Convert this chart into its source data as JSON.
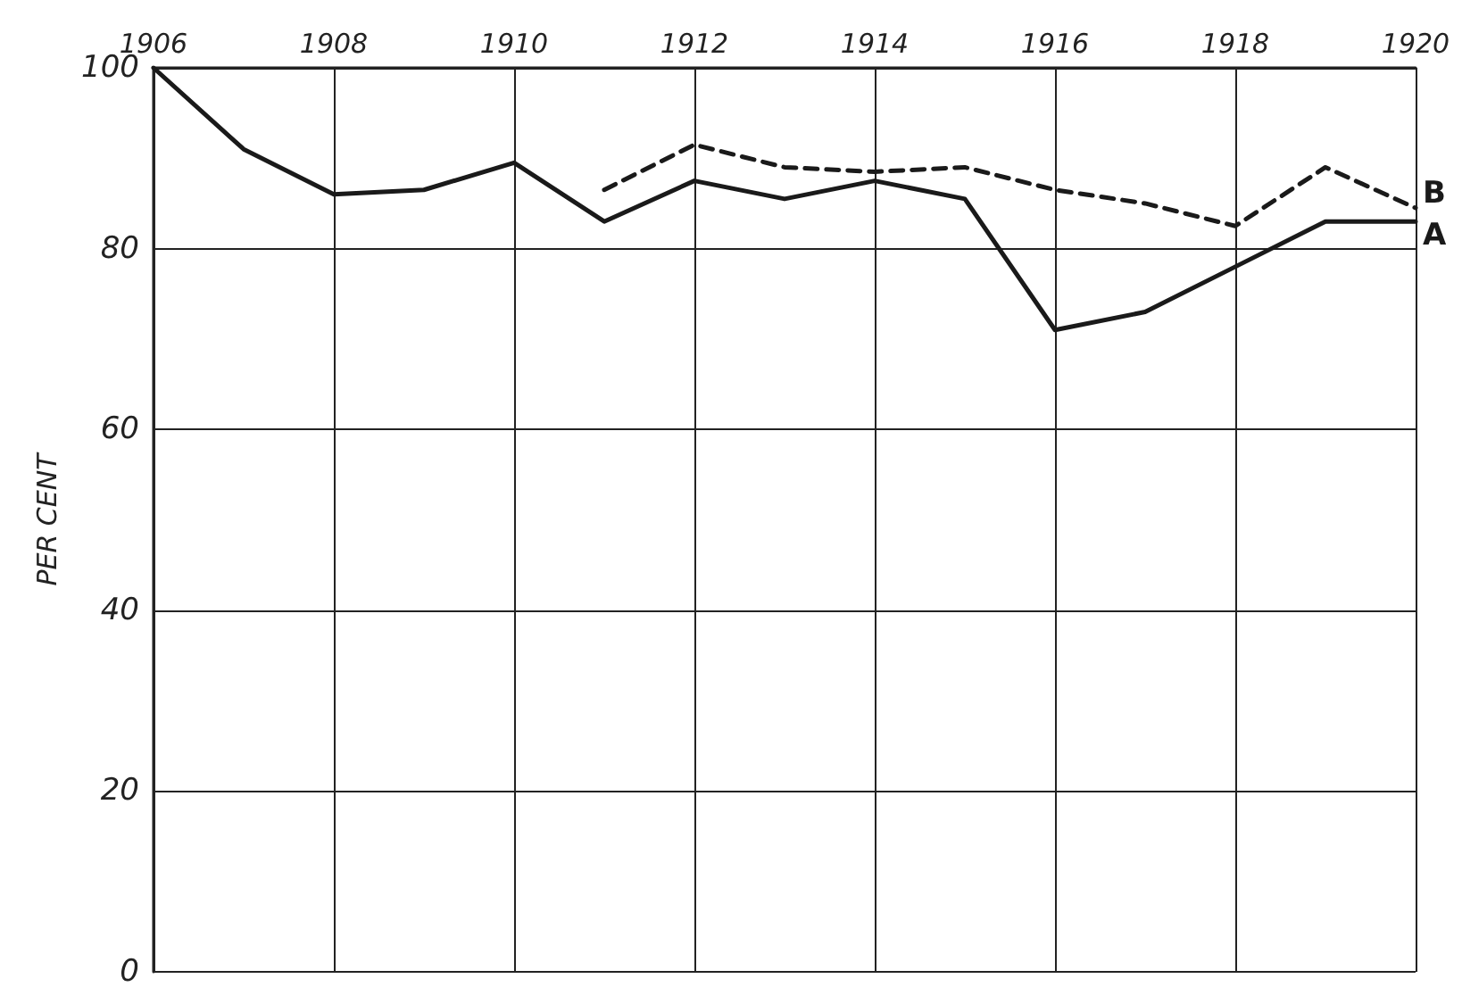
{
  "chart_data": {
    "type": "line",
    "ylabel": "PER CENT",
    "xlim": [
      1906,
      1920
    ],
    "xticks": [
      1906,
      1908,
      1910,
      1912,
      1914,
      1916,
      1918,
      1920
    ],
    "ylim": [
      0,
      100
    ],
    "yticks": [
      0,
      20,
      40,
      60,
      80,
      100
    ],
    "grid": true,
    "legend": false,
    "marker": "none",
    "x": [
      1906,
      1907,
      1908,
      1909,
      1910,
      1911,
      1912,
      1913,
      1914,
      1915,
      1916,
      1917,
      1918,
      1919,
      1920
    ],
    "series": [
      {
        "name": "A",
        "color": "#1a1a1a",
        "line_style": "solid",
        "values": [
          100,
          91,
          86,
          86.5,
          89.5,
          83,
          87.5,
          85.5,
          87.5,
          85.5,
          71,
          73,
          78,
          83,
          83
        ]
      },
      {
        "name": "B",
        "color": "#1a1a1a",
        "line_style": "dashed",
        "values": [
          null,
          null,
          null,
          null,
          null,
          86.5,
          91.5,
          89,
          88.5,
          89,
          86.5,
          85,
          82.5,
          89,
          84.5
        ]
      }
    ]
  }
}
